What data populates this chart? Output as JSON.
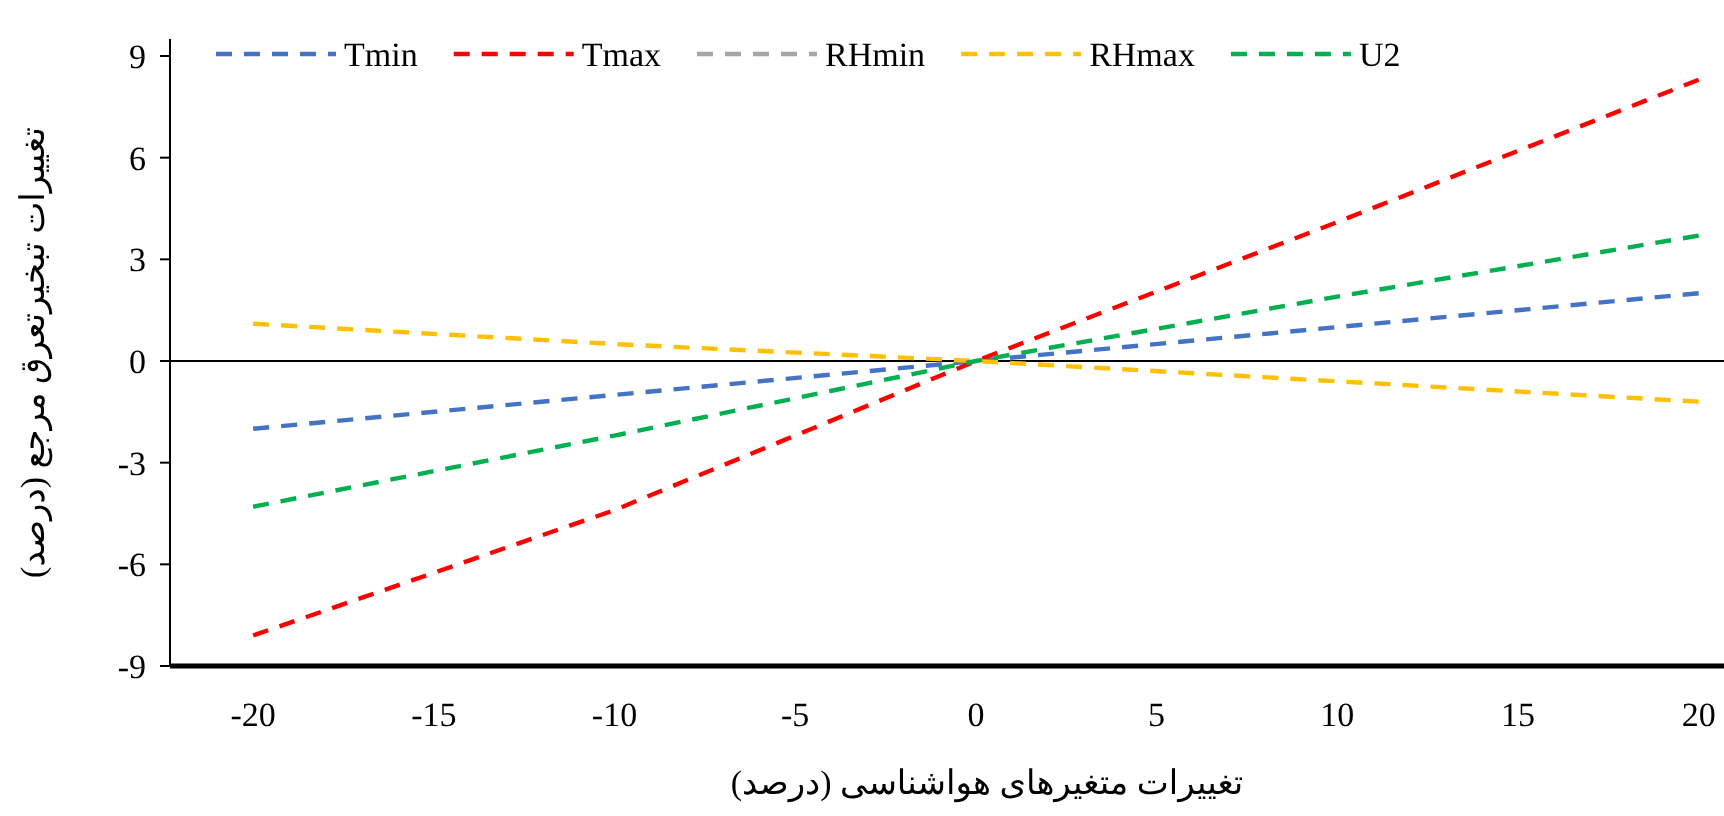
{
  "chart_data": {
    "type": "line",
    "xlabel": "تغییرات متغیرهای هواشناسی (درصد)",
    "ylabel": "تغییرات تبخیرتعرق مرجع (درصد)",
    "x": [
      -20,
      -10,
      0,
      10,
      20
    ],
    "series": [
      {
        "name": "Tmin",
        "color": "#4472c4",
        "values": [
          -2.0,
          -1.0,
          0,
          1.0,
          2.0
        ]
      },
      {
        "name": "Tmax",
        "color": "#ff0000",
        "values": [
          -8.1,
          -4.4,
          0,
          4.1,
          8.3
        ]
      },
      {
        "name": "RHmin",
        "color": "#a5a5a5",
        "values": [
          null,
          null,
          null,
          null,
          null
        ]
      },
      {
        "name": "RHmax",
        "color": "#ffc000",
        "values": [
          1.1,
          0.5,
          0,
          -0.6,
          -1.2
        ]
      },
      {
        "name": "U2",
        "color": "#00b050",
        "values": [
          -4.3,
          -2.2,
          0,
          1.9,
          3.7
        ]
      }
    ],
    "xlim": [
      -22.3,
      20.7
    ],
    "ylim": [
      -9,
      9.5
    ],
    "xticks": [
      -20,
      -15,
      -10,
      -5,
      0,
      5,
      10,
      15,
      20
    ],
    "yticks": [
      -9,
      -6,
      -3,
      0,
      3,
      6,
      9
    ],
    "ref_lines": [
      {
        "axis": "y",
        "value": 0,
        "color": "#000000"
      }
    ],
    "legend": "top",
    "line_style": "dashed"
  }
}
